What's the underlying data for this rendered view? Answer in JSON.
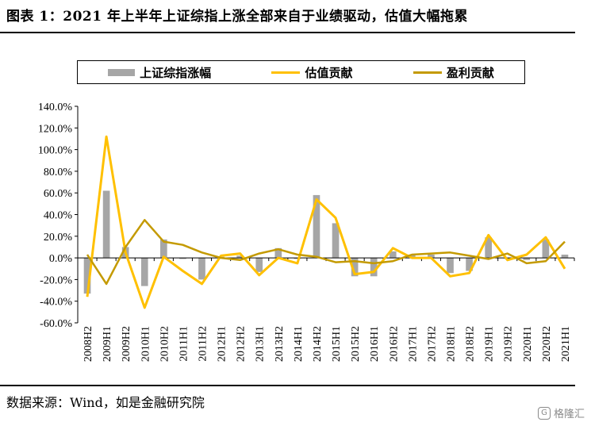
{
  "title": "图表 1：2021 年上半年上证综指上涨全部来自于业绩驱动，估值大幅拖累",
  "source": "数据来源：Wind，如是金融研究院",
  "watermark": {
    "icon": "gelonghui-logo",
    "text": "格隆汇"
  },
  "colors": {
    "bar": "#a6a6a6",
    "valuation": "#ffc000",
    "profit": "#c49a00",
    "axis": "#000000"
  },
  "legend": [
    "上证综指涨幅",
    "估值贡献",
    "盈利贡献"
  ],
  "chart_data": {
    "type": "bar",
    "categories": [
      "2008H2",
      "2009H1",
      "2009H2",
      "2010H1",
      "2010H2",
      "2011H1",
      "2011H2",
      "2012H1",
      "2012H2",
      "2013H1",
      "2013H2",
      "2014H1",
      "2014H2",
      "2015H1",
      "2015H2",
      "2016H1",
      "2016H2",
      "2017H1",
      "2017H2",
      "2018H1",
      "2018H2",
      "2019H1",
      "2019H2",
      "2020H1",
      "2020H2",
      "2021H1"
    ],
    "ylim": [
      -60,
      140
    ],
    "yticks": [
      "140.0%",
      "120.0%",
      "100.0%",
      "80.0%",
      "60.0%",
      "40.0%",
      "20.0%",
      "0.0%",
      "-20.0%",
      "-40.0%",
      "-60.0%"
    ],
    "ytick_values": [
      140,
      120,
      100,
      80,
      60,
      40,
      20,
      0,
      -20,
      -40,
      -60
    ],
    "grid": false,
    "legend_position": "top",
    "series": [
      {
        "name": "上证综指涨幅",
        "kind": "bar",
        "values": [
          -33,
          62,
          10,
          -26,
          17,
          -1,
          -20,
          1,
          2,
          -13,
          9,
          -1,
          58,
          32,
          -17,
          -17,
          6,
          3,
          3,
          -14,
          -12,
          19,
          -1,
          -2,
          17,
          3
        ]
      },
      {
        "name": "估值贡献",
        "kind": "line",
        "values": [
          -36,
          112,
          5,
          -46,
          1,
          -12,
          -24,
          2,
          4,
          -16,
          0,
          -5,
          54,
          37,
          -15,
          -13,
          9,
          0,
          0,
          -17,
          -14,
          21,
          -2,
          3,
          19,
          -10
        ]
      },
      {
        "name": "盈利贡献",
        "kind": "line",
        "values": [
          3,
          -24,
          10,
          35,
          15,
          12,
          5,
          0,
          -2,
          4,
          8,
          3,
          1,
          -4,
          -3,
          -5,
          -3,
          3,
          4,
          5,
          2,
          -1,
          4,
          -5,
          -3,
          15
        ]
      }
    ]
  }
}
